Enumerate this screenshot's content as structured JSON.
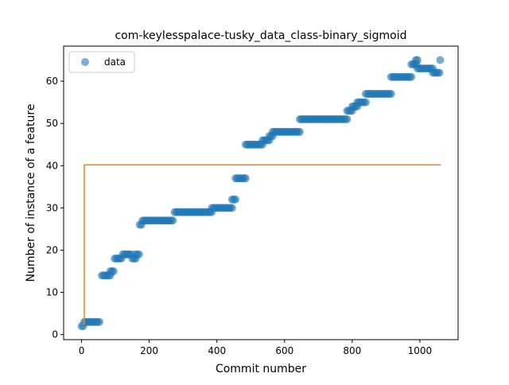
{
  "chart_data": {
    "type": "scatter",
    "title": "com-keylesspalace-tusky_data_class-binary_sigmoid",
    "xlabel": "Commit number",
    "ylabel": "Number of instance of a feature",
    "xlim": [
      -53,
      1113
    ],
    "ylim": [
      -1.2,
      68.3
    ],
    "xticks": [
      0,
      200,
      400,
      600,
      800,
      1000
    ],
    "yticks": [
      0,
      10,
      20,
      30,
      40,
      50,
      60
    ],
    "legend": {
      "position": "top-left",
      "entries": [
        "data"
      ]
    },
    "colors": {
      "data": "#1f77b4",
      "fit": "#ff7f0e"
    },
    "series": [
      {
        "name": "data",
        "kind": "scatter",
        "segments": [
          {
            "x_start": 0,
            "x_end": 8,
            "y": 2
          },
          {
            "x_start": 8,
            "x_end": 55,
            "y": 3
          },
          {
            "x_start": 60,
            "x_end": 85,
            "y": 14
          },
          {
            "x_start": 85,
            "x_end": 95,
            "y": 15
          },
          {
            "x_start": 98,
            "x_end": 122,
            "y": 18
          },
          {
            "x_start": 122,
            "x_end": 150,
            "y": 19
          },
          {
            "x_start": 150,
            "x_end": 160,
            "y": 18
          },
          {
            "x_start": 160,
            "x_end": 170,
            "y": 19
          },
          {
            "x_start": 172,
            "x_end": 180,
            "y": 26
          },
          {
            "x_start": 180,
            "x_end": 270,
            "y": 27
          },
          {
            "x_start": 275,
            "x_end": 385,
            "y": 29
          },
          {
            "x_start": 385,
            "x_end": 445,
            "y": 30
          },
          {
            "x_start": 445,
            "x_end": 455,
            "y": 32
          },
          {
            "x_start": 455,
            "x_end": 485,
            "y": 37
          },
          {
            "x_start": 485,
            "x_end": 535,
            "y": 45
          },
          {
            "x_start": 535,
            "x_end": 555,
            "y": 46
          },
          {
            "x_start": 555,
            "x_end": 565,
            "y": 47
          },
          {
            "x_start": 565,
            "x_end": 645,
            "y": 48
          },
          {
            "x_start": 645,
            "x_end": 785,
            "y": 51
          },
          {
            "x_start": 785,
            "x_end": 800,
            "y": 53
          },
          {
            "x_start": 800,
            "x_end": 815,
            "y": 54
          },
          {
            "x_start": 815,
            "x_end": 840,
            "y": 55
          },
          {
            "x_start": 840,
            "x_end": 915,
            "y": 57
          },
          {
            "x_start": 915,
            "x_end": 975,
            "y": 61
          },
          {
            "x_start": 975,
            "x_end": 990,
            "y": 64
          },
          {
            "x_start": 988,
            "x_end": 993,
            "y": 65
          },
          {
            "x_start": 993,
            "x_end": 1038,
            "y": 63
          },
          {
            "x_start": 1038,
            "x_end": 1062,
            "y": 62
          },
          {
            "x_start": 1060,
            "x_end": 1062,
            "y": 65
          }
        ]
      },
      {
        "name": "",
        "kind": "line",
        "x": [
          0,
          8,
          8,
          1062
        ],
        "y": [
          2.5,
          2.5,
          40.2,
          40.2
        ]
      }
    ]
  }
}
